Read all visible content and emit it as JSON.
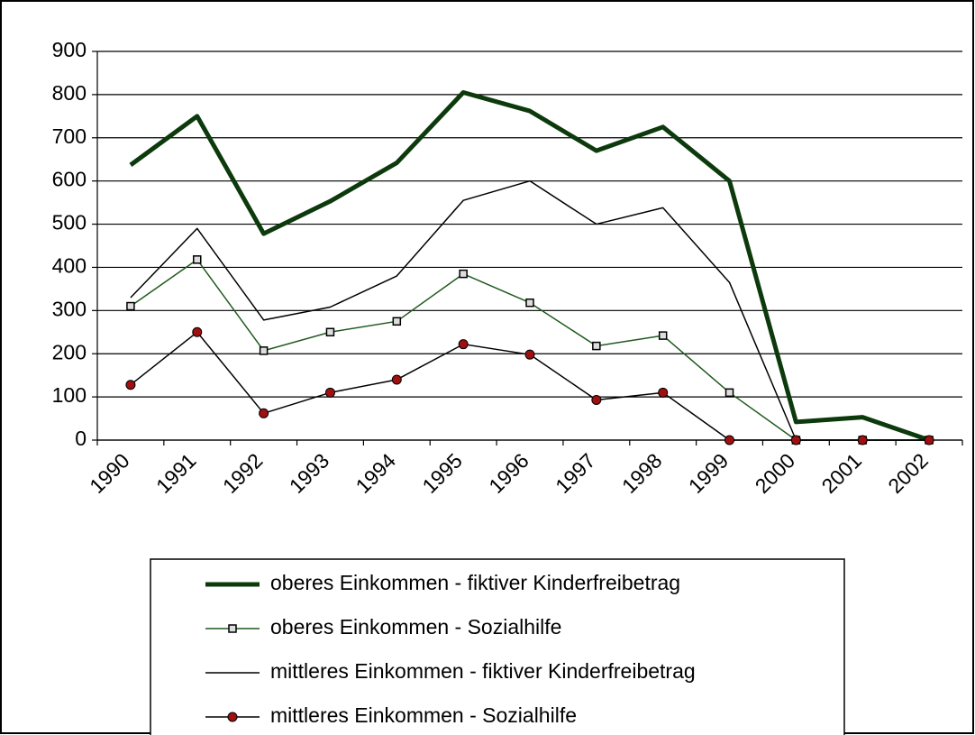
{
  "chart_data": {
    "type": "line",
    "categories": [
      "1990",
      "1991",
      "1992",
      "1993",
      "1994",
      "1995",
      "1996",
      "1997",
      "1998",
      "1999",
      "2000",
      "2001",
      "2002"
    ],
    "series": [
      {
        "name": "oberes Einkommen - fiktiver Kinderfreibetrag",
        "color": "#0d3a0d",
        "line_width": 5,
        "marker": "none",
        "values": [
          637,
          750,
          478,
          553,
          642,
          805,
          762,
          670,
          725,
          600,
          42,
          53,
          0
        ]
      },
      {
        "name": "oberes Einkommen - Sozialhilfe",
        "color": "#1f5a1f",
        "line_width": 1.5,
        "marker": "square",
        "values": [
          310,
          418,
          207,
          250,
          275,
          385,
          318,
          218,
          242,
          110,
          0,
          0,
          0
        ]
      },
      {
        "name": "mittleres Einkommen - fiktiver Kinderfreibetrag",
        "color": "#000000",
        "line_width": 1.5,
        "marker": "none",
        "values": [
          330,
          490,
          278,
          308,
          380,
          555,
          600,
          500,
          538,
          365,
          0,
          0,
          0
        ]
      },
      {
        "name": "mittleres Einkommen - Sozialhilfe",
        "color": "#000000",
        "marker_color": "#a01010",
        "line_width": 1.5,
        "marker": "circle",
        "values": [
          128,
          250,
          62,
          110,
          140,
          222,
          198,
          93,
          110,
          0,
          0,
          0,
          0
        ]
      }
    ],
    "ylim": [
      0,
      900
    ],
    "yticks": [
      0,
      100,
      200,
      300,
      400,
      500,
      600,
      700,
      800,
      900
    ],
    "grid": true,
    "legend": "bottom"
  }
}
